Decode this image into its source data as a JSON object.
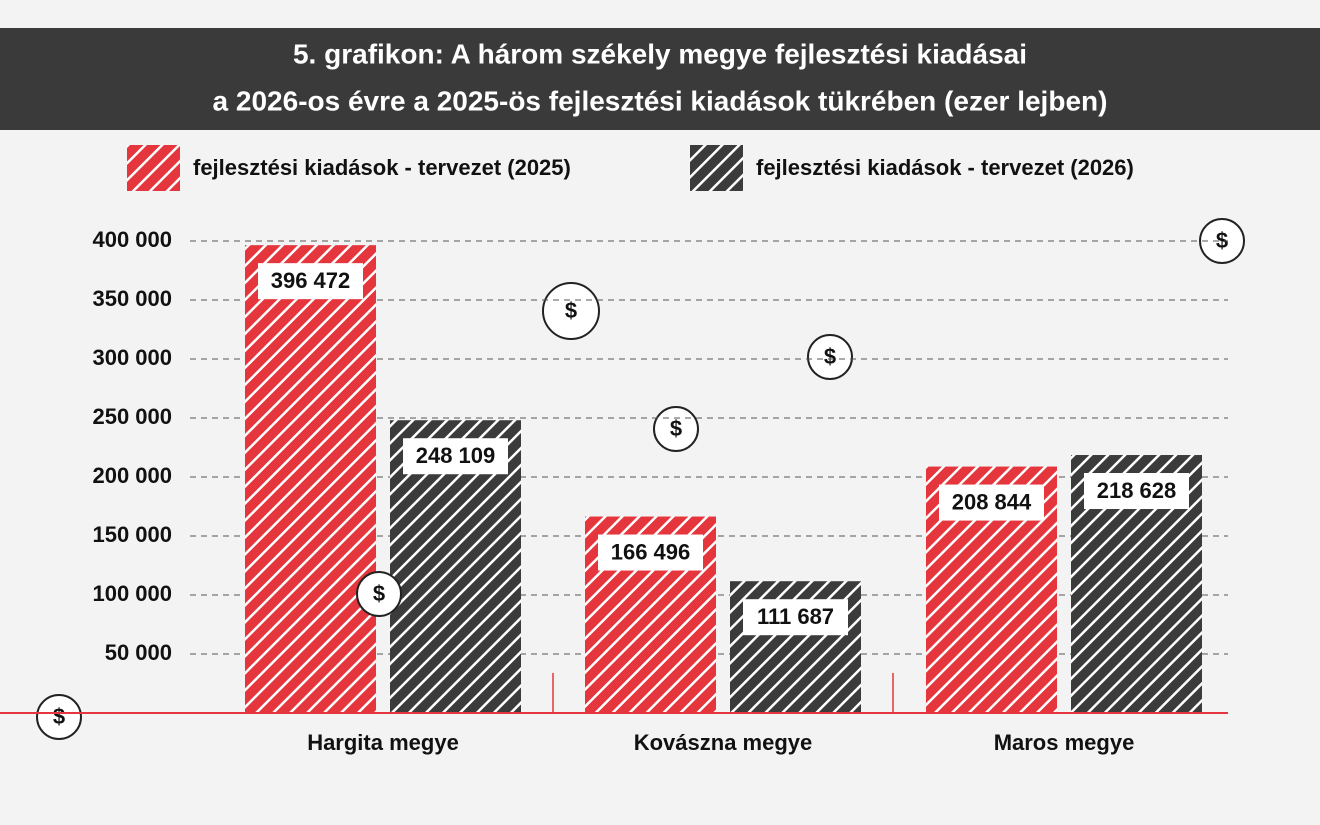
{
  "chart_data": {
    "type": "bar",
    "title": [
      "5. grafikon: A három székely megye fejlesztési kiadásai",
      "a 2026-os évre a 2025-ös fejlesztési kiadások tükrében (ezer lejben)"
    ],
    "categories": [
      "Hargita megye",
      "Kovászna megye",
      "Maros megye"
    ],
    "series": [
      {
        "name": "fejlesztési kiadások - tervezet (2025)",
        "color": "#e4363c",
        "values": [
          396472,
          166496,
          208844
        ],
        "value_labels": [
          "396 472",
          "166 496",
          "208 844"
        ]
      },
      {
        "name": "fejlesztési kiadások - tervezet (2026)",
        "color": "#3b3b3b",
        "values": [
          248109,
          111687,
          218628
        ],
        "value_labels": [
          "248 109",
          "111 687",
          "218 628"
        ]
      }
    ],
    "ylim": [
      0,
      400000
    ],
    "yticks": [
      {
        "value": 50000,
        "label": "50 000"
      },
      {
        "value": 100000,
        "label": "100 000"
      },
      {
        "value": 150000,
        "label": "150 000"
      },
      {
        "value": 200000,
        "label": "200 000"
      },
      {
        "value": 250000,
        "label": "250 000"
      },
      {
        "value": 300000,
        "label": "300 000"
      },
      {
        "value": 350000,
        "label": "350 000"
      },
      {
        "value": 400000,
        "label": "400 000"
      }
    ],
    "grid": true
  }
}
